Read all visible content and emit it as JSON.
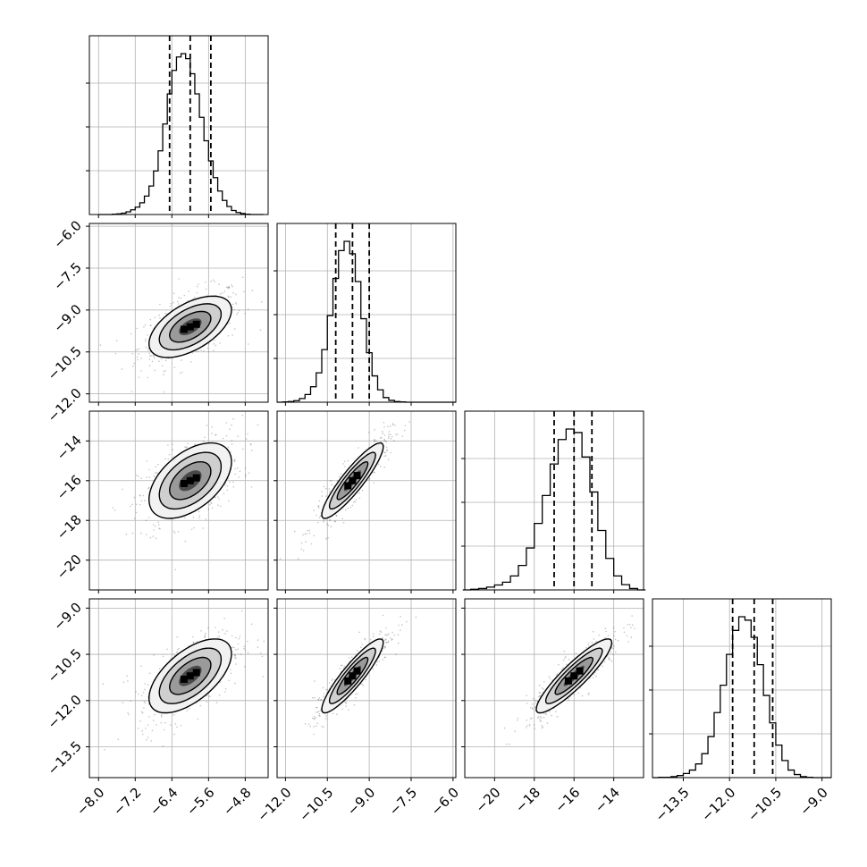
{
  "chart_data": {
    "type": "corner",
    "parameters": 4,
    "axes": [
      {
        "range": [
          -8.2,
          -4.3
        ],
        "ticks": [
          -8.0,
          -7.2,
          -6.4,
          -5.6,
          -4.8
        ],
        "tick_labels": [
          "−8.0",
          "−7.2",
          "−6.4",
          "−5.6",
          "−4.8"
        ],
        "quantiles": [
          -6.45,
          -6.0,
          -5.55
        ]
      },
      {
        "range": [
          -12.3,
          -5.9
        ],
        "ticks": [
          -12.0,
          -10.5,
          -9.0,
          -7.5,
          -6.0
        ],
        "tick_labels": [
          "−12.0",
          "−10.5",
          "−9.0",
          "−7.5",
          "−6.0"
        ],
        "quantiles": [
          -10.2,
          -9.6,
          -9.0
        ]
      },
      {
        "range": [
          -21.5,
          -12.5
        ],
        "ticks": [
          -20,
          -18,
          -16,
          -14
        ],
        "tick_labels": [
          "−20",
          "−18",
          "−16",
          "−14"
        ],
        "quantiles": [
          -17.0,
          -16.0,
          -15.1
        ]
      },
      {
        "range": [
          -14.5,
          -8.7
        ],
        "ticks": [
          -13.5,
          -12.0,
          -10.5,
          -9.0
        ],
        "tick_labels": [
          "−13.5",
          "−12.0",
          "−10.5",
          "−9.0"
        ],
        "quantiles": [
          -11.9,
          -11.2,
          -10.6
        ]
      }
    ],
    "stats": {
      "means": [
        -6.0,
        -9.6,
        -16.0,
        -11.2
      ],
      "sds": [
        0.45,
        0.55,
        0.95,
        0.6
      ],
      "correlations": [
        [
          1,
          0.55,
          0.5,
          0.6
        ],
        [
          0.55,
          1,
          0.9,
          0.9
        ],
        [
          0.5,
          0.9,
          1,
          0.9
        ],
        [
          0.6,
          0.9,
          0.9,
          1
        ]
      ]
    },
    "histograms": [
      {
        "bins": [
          -7.95,
          -7.85,
          -7.75,
          -7.65,
          -7.55,
          -7.45,
          -7.35,
          -7.25,
          -7.15,
          -7.05,
          -6.95,
          -6.85,
          -6.75,
          -6.65,
          -6.55,
          -6.45,
          -6.35,
          -6.25,
          -6.15,
          -6.05,
          -5.95,
          -5.85,
          -5.75,
          -5.65,
          -5.55,
          -5.45,
          -5.35,
          -5.25,
          -5.15,
          -5.05,
          -4.95,
          -4.85,
          -4.75,
          -4.65,
          -4.55,
          -4.45
        ],
        "counts": [
          0,
          0,
          0,
          1,
          2,
          4,
          8,
          14,
          22,
          35,
          55,
          85,
          130,
          190,
          270,
          360,
          430,
          470,
          480,
          465,
          420,
          360,
          290,
          220,
          160,
          110,
          70,
          42,
          24,
          12,
          6,
          3,
          1,
          0,
          0,
          0
        ]
      },
      {
        "bins": [
          -12.2,
          -12.0,
          -11.8,
          -11.6,
          -11.4,
          -11.2,
          -11.0,
          -10.8,
          -10.6,
          -10.4,
          -10.2,
          -10.0,
          -9.8,
          -9.6,
          -9.4,
          -9.2,
          -9.0,
          -8.8,
          -8.6,
          -8.4,
          -8.2,
          -8.0,
          -7.8,
          -7.6,
          -7.4,
          -7.2,
          -7.0,
          -6.8,
          -6.6,
          -6.4,
          -6.2,
          -6.0
        ],
        "counts": [
          0,
          1,
          2,
          5,
          12,
          25,
          50,
          95,
          170,
          280,
          400,
          490,
          520,
          480,
          390,
          270,
          160,
          85,
          40,
          15,
          6,
          2,
          1,
          0,
          0,
          0,
          0,
          0,
          0,
          0,
          0,
          0
        ]
      },
      {
        "bins": [
          -21.4,
          -21.0,
          -20.6,
          -20.2,
          -19.8,
          -19.4,
          -19.0,
          -18.6,
          -18.2,
          -17.8,
          -17.4,
          -17.0,
          -16.6,
          -16.2,
          -15.8,
          -15.4,
          -15.0,
          -14.6,
          -14.2,
          -13.8,
          -13.4,
          -13.0,
          -12.6
        ],
        "counts": [
          0,
          2,
          4,
          8,
          14,
          22,
          40,
          70,
          120,
          190,
          270,
          360,
          430,
          460,
          450,
          380,
          280,
          170,
          90,
          40,
          15,
          4,
          0
        ]
      },
      {
        "bins": [
          -14.4,
          -14.2,
          -14.0,
          -13.8,
          -13.6,
          -13.4,
          -13.2,
          -13.0,
          -12.8,
          -12.6,
          -12.4,
          -12.2,
          -12.0,
          -11.8,
          -11.6,
          -11.4,
          -11.2,
          -11.0,
          -10.8,
          -10.6,
          -10.4,
          -10.2,
          -10.0,
          -9.8,
          -9.6,
          -9.4,
          -9.2,
          -9.0,
          -8.8
        ],
        "counts": [
          0,
          1,
          1,
          3,
          6,
          12,
          22,
          40,
          70,
          120,
          190,
          270,
          360,
          430,
          470,
          460,
          410,
          330,
          240,
          160,
          95,
          50,
          22,
          9,
          3,
          1,
          0,
          0,
          0
        ]
      }
    ]
  }
}
